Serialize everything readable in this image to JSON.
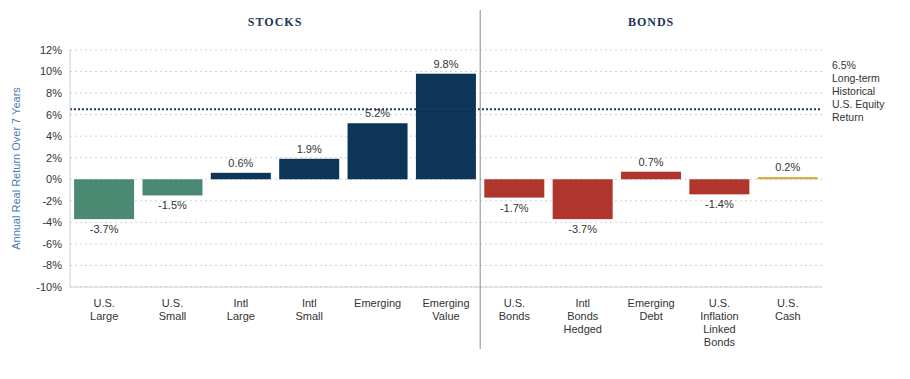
{
  "chart_data": {
    "type": "bar",
    "ylabel": "Annual Real Return Over 7 Years",
    "categories": [
      "U.S. Large",
      "U.S. Small",
      "Intl Large",
      "Intl Small",
      "Emerging",
      "Emerging Value",
      "U.S. Bonds",
      "Intl Bonds Hedged",
      "Emerging Debt",
      "U.S. Inflation Linked Bonds",
      "U.S. Cash"
    ],
    "values": [
      -3.7,
      -1.5,
      0.6,
      1.9,
      5.2,
      9.8,
      -1.7,
      -3.7,
      0.7,
      -1.4,
      0.2
    ],
    "value_labels": [
      "-3.7%",
      "-1.5%",
      "0.6%",
      "1.9%",
      "5.2%",
      "9.8%",
      "-1.7%",
      "-3.7%",
      "0.7%",
      "-1.4%",
      "0.2%"
    ],
    "colors": [
      "#4a8a73",
      "#4a8a73",
      "#0c3558",
      "#0c3558",
      "#0c3558",
      "#0c3558",
      "#b0352d",
      "#b0352d",
      "#b0352d",
      "#b0352d",
      "#d9a83c"
    ],
    "ylim": [
      -10,
      12
    ],
    "yticks": [
      {
        "value": -10,
        "label": "-10%"
      },
      {
        "value": -8,
        "label": "-8%"
      },
      {
        "value": -6,
        "label": "-6%"
      },
      {
        "value": -4,
        "label": "-4%"
      },
      {
        "value": -2,
        "label": "-2%"
      },
      {
        "value": 0,
        "label": "0%"
      },
      {
        "value": 2,
        "label": "2%"
      },
      {
        "value": 4,
        "label": "4%"
      },
      {
        "value": 6,
        "label": "6%"
      },
      {
        "value": 8,
        "label": "8%"
      },
      {
        "value": 10,
        "label": "10%"
      },
      {
        "value": 12,
        "label": "12%"
      }
    ],
    "grid": true,
    "data_labels": true,
    "reference_line": {
      "value": 6.5,
      "label": [
        "6.5%",
        "Long-term",
        "Historical",
        "U.S. Equity",
        "Return"
      ],
      "color": "#1f3b5c"
    },
    "groups": [
      {
        "label": "STOCKS",
        "from": "U.S. Large",
        "to": "Emerging Value"
      },
      {
        "label": "BONDS",
        "from": "U.S. Bonds",
        "to": "U.S. Cash"
      }
    ]
  }
}
